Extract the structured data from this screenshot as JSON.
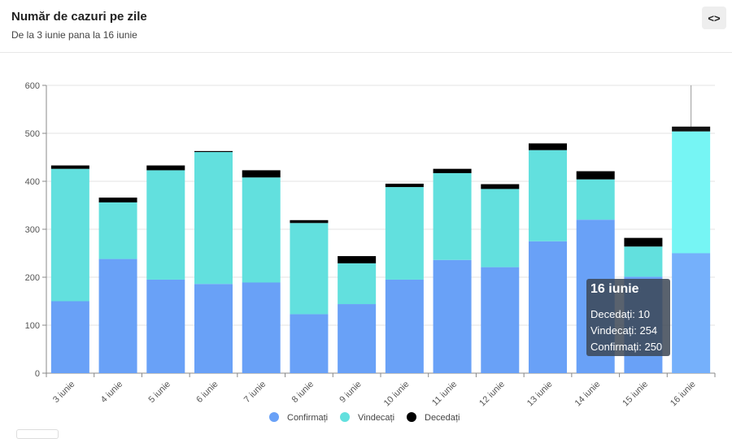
{
  "header": {
    "title": "Număr de cazuri pe zile",
    "subtitle": "De la 3 iunie pana la 16 iunie",
    "code_button_label": "<>"
  },
  "chart_data": {
    "type": "bar",
    "stacked": true,
    "categories": [
      "3 iunie",
      "4 iunie",
      "5 iunie",
      "6 iunie",
      "7 iunie",
      "8 iunie",
      "9 iunie",
      "10 iunie",
      "11 iunie",
      "12 iunie",
      "13 iunie",
      "14 iunie",
      "15 iunie",
      "16 iunie"
    ],
    "series": [
      {
        "name": "Confirmați",
        "color": "#69a1f7",
        "values": [
          150,
          238,
          195,
          186,
          189,
          123,
          144,
          195,
          236,
          221,
          275,
          320,
          201,
          250
        ]
      },
      {
        "name": "Vindecați",
        "color": "#62e0de",
        "values": [
          276,
          118,
          228,
          275,
          219,
          190,
          85,
          193,
          181,
          163,
          190,
          84,
          63,
          254
        ]
      },
      {
        "name": "Decedați",
        "color": "#000000",
        "values": [
          7,
          10,
          10,
          2,
          15,
          6,
          15,
          7,
          9,
          10,
          14,
          17,
          18,
          10
        ]
      }
    ],
    "ylim": [
      0,
      600
    ],
    "yticks": [
      0,
      100,
      200,
      300,
      400,
      500,
      600
    ],
    "legend": "bottom-center",
    "highlighted_category": "16 iunie",
    "highlight_colors": [
      "#75b0fb",
      "#76f5f4",
      "#111111"
    ]
  },
  "tooltip": {
    "title": "16 iunie",
    "lines": [
      "Decedați: 10",
      "Vindecați: 254",
      "Confirmați: 250"
    ]
  }
}
